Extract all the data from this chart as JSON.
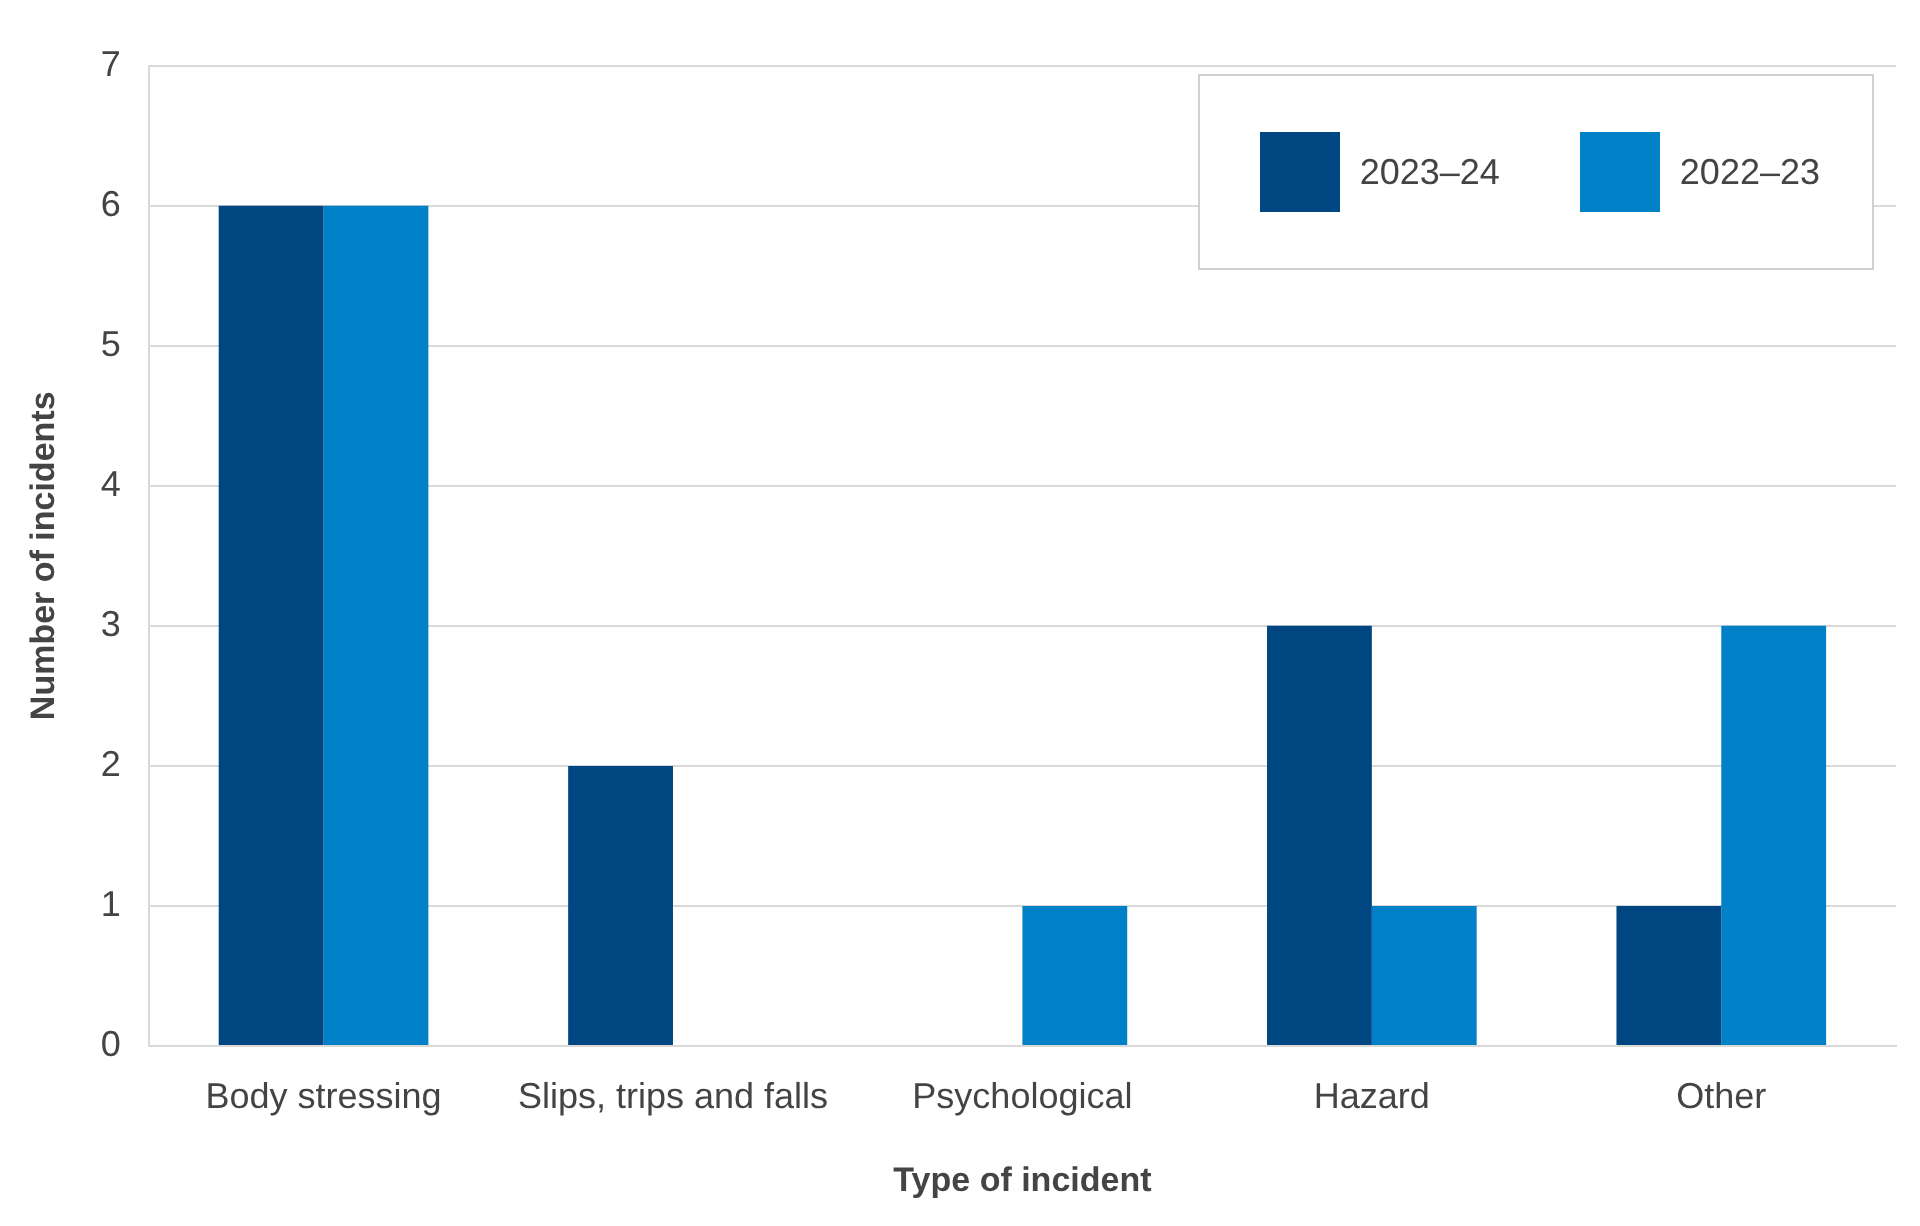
{
  "chart_data": {
    "type": "bar",
    "xlabel": "Type of incident",
    "ylabel": "Number of incidents",
    "categories": [
      "Body stressing",
      "Slips, trips and falls",
      "Psychological",
      "Hazard",
      "Other"
    ],
    "series": [
      {
        "name": "2023–24",
        "color": "#004680",
        "values": [
          6,
          2,
          0,
          3,
          1
        ]
      },
      {
        "name": "2022–23",
        "color": "#0080c6",
        "values": [
          6,
          0,
          1,
          1,
          3
        ]
      }
    ],
    "ylim": [
      0,
      7
    ],
    "yticks": [
      0,
      1,
      2,
      3,
      4,
      5,
      6,
      7
    ],
    "grid": "y",
    "legend": "top right"
  }
}
